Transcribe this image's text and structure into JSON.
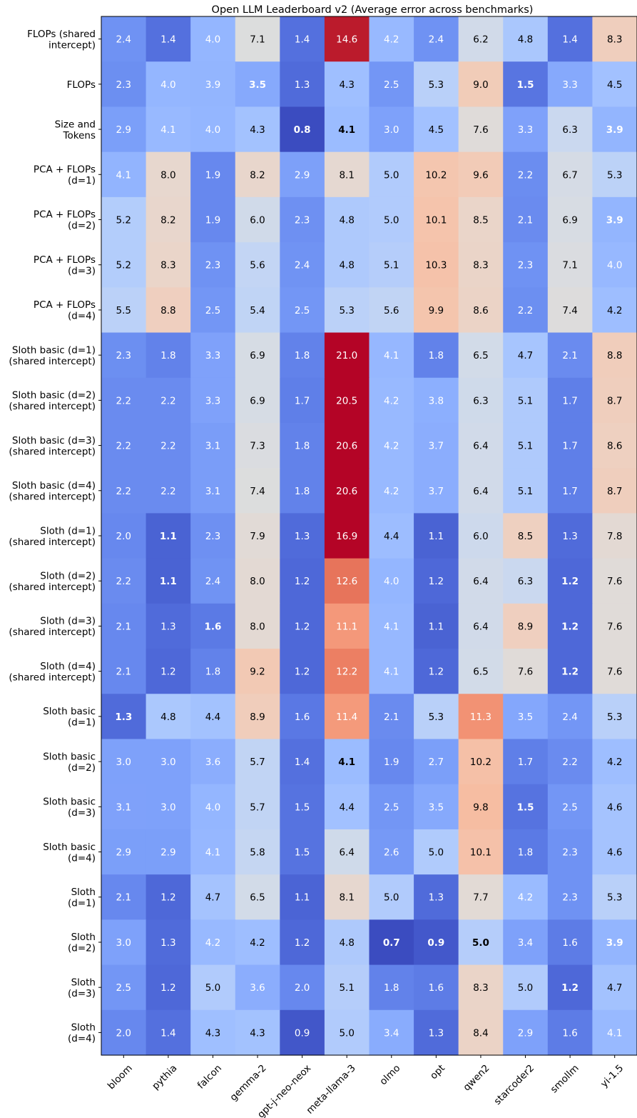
{
  "chart_data": {
    "type": "heatmap",
    "title": "Open LLM Leaderboard v2 (Average error across benchmarks)",
    "colormap": "coolwarm",
    "columns": [
      "bloom",
      "pythia",
      "falcon",
      "gemma-2",
      "gpt-j-neo-neox",
      "meta-llama-3",
      "olmo",
      "opt",
      "qwen2",
      "starcoder2",
      "smollm",
      "yi-1.5"
    ],
    "rows": [
      "FLOPs (shared\nintercept)",
      "FLOPs",
      "Size and\nTokens",
      "PCA + FLOPs\n(d=1)",
      "PCA + FLOPs\n(d=2)",
      "PCA + FLOPs\n(d=3)",
      "PCA + FLOPs\n(d=4)",
      "Sloth basic (d=1)\n(shared intercept)",
      "Sloth basic (d=2)\n(shared intercept)",
      "Sloth basic (d=3)\n(shared intercept)",
      "Sloth basic (d=4)\n(shared intercept)",
      "Sloth (d=1)\n(shared intercept)",
      "Sloth (d=2)\n(shared intercept)",
      "Sloth (d=3)\n(shared intercept)",
      "Sloth (d=4)\n(shared intercept)",
      "Sloth basic\n(d=1)",
      "Sloth basic\n(d=2)",
      "Sloth basic\n(d=3)",
      "Sloth basic\n(d=4)",
      "Sloth\n(d=1)",
      "Sloth\n(d=2)",
      "Sloth\n(d=3)",
      "Sloth\n(d=4)"
    ],
    "values": [
      [
        2.4,
        1.4,
        4.0,
        7.1,
        1.4,
        14.6,
        4.2,
        2.4,
        6.2,
        4.8,
        1.4,
        8.3
      ],
      [
        2.3,
        4.0,
        3.9,
        3.5,
        1.3,
        4.3,
        2.5,
        5.3,
        9.0,
        1.5,
        3.3,
        4.5
      ],
      [
        2.9,
        4.1,
        4.0,
        4.3,
        0.8,
        4.1,
        3.0,
        4.5,
        7.6,
        3.3,
        6.3,
        3.9
      ],
      [
        4.1,
        8.0,
        1.9,
        8.2,
        2.9,
        8.1,
        5.0,
        10.2,
        9.6,
        2.2,
        6.7,
        5.3
      ],
      [
        5.2,
        8.2,
        1.9,
        6.0,
        2.3,
        4.8,
        5.0,
        10.1,
        8.5,
        2.1,
        6.9,
        3.9
      ],
      [
        5.2,
        8.3,
        2.3,
        5.6,
        2.4,
        4.8,
        5.1,
        10.3,
        8.3,
        2.3,
        7.1,
        4.0
      ],
      [
        5.5,
        8.8,
        2.5,
        5.4,
        2.5,
        5.3,
        5.6,
        9.9,
        8.6,
        2.2,
        7.4,
        4.2
      ],
      [
        2.3,
        1.8,
        3.3,
        6.9,
        1.8,
        21.0,
        4.1,
        1.8,
        6.5,
        4.7,
        2.1,
        8.8
      ],
      [
        2.2,
        2.2,
        3.3,
        6.9,
        1.7,
        20.5,
        4.2,
        3.8,
        6.3,
        5.1,
        1.7,
        8.7
      ],
      [
        2.2,
        2.2,
        3.1,
        7.3,
        1.8,
        20.6,
        4.2,
        3.7,
        6.4,
        5.1,
        1.7,
        8.6
      ],
      [
        2.2,
        2.2,
        3.1,
        7.4,
        1.8,
        20.6,
        4.2,
        3.7,
        6.4,
        5.1,
        1.7,
        8.7
      ],
      [
        2.0,
        1.1,
        2.3,
        7.9,
        1.3,
        16.9,
        4.4,
        1.1,
        6.0,
        8.5,
        1.3,
        7.8
      ],
      [
        2.2,
        1.1,
        2.4,
        8.0,
        1.2,
        12.6,
        4.0,
        1.2,
        6.4,
        6.3,
        1.2,
        7.6
      ],
      [
        2.1,
        1.3,
        1.6,
        8.0,
        1.2,
        11.1,
        4.1,
        1.1,
        6.4,
        8.9,
        1.2,
        7.6
      ],
      [
        2.1,
        1.2,
        1.8,
        9.2,
        1.2,
        12.2,
        4.1,
        1.2,
        6.5,
        7.6,
        1.2,
        7.6
      ],
      [
        1.3,
        4.8,
        4.4,
        8.9,
        1.6,
        11.4,
        2.1,
        5.3,
        11.3,
        3.5,
        2.4,
        5.3
      ],
      [
        3.0,
        3.0,
        3.6,
        5.7,
        1.4,
        4.1,
        1.9,
        2.7,
        10.2,
        1.7,
        2.2,
        4.2
      ],
      [
        3.1,
        3.0,
        4.0,
        5.7,
        1.5,
        4.4,
        2.5,
        3.5,
        9.8,
        1.5,
        2.5,
        4.6
      ],
      [
        2.9,
        2.9,
        4.1,
        5.8,
        1.5,
        6.4,
        2.6,
        5.0,
        10.1,
        1.8,
        2.3,
        4.6
      ],
      [
        2.1,
        1.2,
        4.7,
        6.5,
        1.1,
        8.1,
        5.0,
        1.3,
        7.7,
        4.2,
        2.3,
        5.3
      ],
      [
        3.0,
        1.3,
        4.2,
        4.2,
        1.2,
        4.8,
        0.7,
        0.9,
        5.0,
        3.4,
        1.6,
        3.9
      ],
      [
        2.5,
        1.2,
        5.0,
        3.6,
        2.0,
        5.1,
        1.8,
        1.6,
        8.3,
        5.0,
        1.2,
        4.7
      ],
      [
        2.0,
        1.4,
        4.3,
        4.3,
        0.9,
        5.0,
        3.4,
        1.3,
        8.4,
        2.9,
        1.6,
        4.1
      ]
    ],
    "bold_cells": [
      [
        1,
        3
      ],
      [
        1,
        9
      ],
      [
        2,
        4
      ],
      [
        2,
        5
      ],
      [
        2,
        11
      ],
      [
        4,
        11
      ],
      [
        11,
        1
      ],
      [
        12,
        1
      ],
      [
        12,
        10
      ],
      [
        13,
        2
      ],
      [
        13,
        10
      ],
      [
        14,
        10
      ],
      [
        15,
        0
      ],
      [
        16,
        5
      ],
      [
        17,
        9
      ],
      [
        20,
        6
      ],
      [
        20,
        7
      ],
      [
        20,
        8
      ],
      [
        20,
        11
      ],
      [
        21,
        10
      ]
    ],
    "cell_colors": [
      [
        "#6f92f3",
        "#5470de",
        "#94b6ff",
        "#dcdddd",
        "#5470de",
        "#bb1b2c",
        "#98b9ff",
        "#6f92f3",
        "#d1dae9",
        "#aac7fd",
        "#5470de",
        "#efcebd"
      ],
      [
        "#6c8ff1",
        "#94b6ff",
        "#93b5fe",
        "#86a9fc",
        "#506bda",
        "#9fbfff",
        "#7396f5",
        "#b9d0f9",
        "#f1ccb8",
        "#5875e1",
        "#86a9fc",
        "#a2c1ff"
      ],
      [
        "#7b9ff9",
        "#98b9ff",
        "#94b6ff",
        "#a3c2fe",
        "#3b4cc0",
        "#9bbcff",
        "#7ea1fa",
        "#a2c1ff",
        "#dfdbd9",
        "#7fa1fa",
        "#cad8ef",
        "#93b5fe"
      ],
      [
        "#92b4fe",
        "#e7d7ce",
        "#6788ee",
        "#e8d6cc",
        "#7da0f9",
        "#e5d8d1",
        "#b1cbfc",
        "#f4c6af",
        "#f2cbb7",
        "#6b8df0",
        "#d5dbe5",
        "#bcd2f7"
      ],
      [
        "#b3cdfb",
        "#e8d6cc",
        "#6788ee",
        "#d0dae9",
        "#6e90f2",
        "#aec9fc",
        "#b1cbfc",
        "#f5c4ac",
        "#ead5c9",
        "#6a8bef",
        "#d7dce3",
        "#93b5fe"
      ],
      [
        "#b3cdfb",
        "#ead5c9",
        "#6f92f3",
        "#c3d5f4",
        "#7093f3",
        "#aec9fc",
        "#b5cdfa",
        "#f5c2aa",
        "#ead4c8",
        "#6f92f3",
        "#dadce0",
        "#97b8ff"
      ],
      [
        "#bbd1f8",
        "#efcfbf",
        "#7396f5",
        "#c0d4f5",
        "#7396f5",
        "#bbd1f8",
        "#c1d4f4",
        "#f4c5ad",
        "#ebd3c6",
        "#6c8ff1",
        "#dddcdc",
        "#9ebeff"
      ],
      [
        "#6c8ff1",
        "#6282ea",
        "#7fa1fa",
        "#d6dce4",
        "#6282ea",
        "#b40426",
        "#96b7ff",
        "#6282ea",
        "#d2dbe8",
        "#a7c5fe",
        "#6a8bef",
        "#f0cdbb"
      ],
      [
        "#6a8bef",
        "#6a8bef",
        "#7fa1fa",
        "#d6dce4",
        "#5f7fe8",
        "#b40426",
        "#98b9ff",
        "#8caffe",
        "#cfdaea",
        "#afcafc",
        "#5f7fe8",
        "#efcebd"
      ],
      [
        "#6a8bef",
        "#6a8bef",
        "#7a9df8",
        "#dadce0",
        "#6282ea",
        "#b40426",
        "#98b9ff",
        "#8badfd",
        "#d1dae9",
        "#afcafc",
        "#5f7fe8",
        "#eed0c0"
      ],
      [
        "#6a8bef",
        "#6a8bef",
        "#7a9df8",
        "#dcdddd",
        "#6282ea",
        "#b40426",
        "#98b9ff",
        "#8badfd",
        "#d1dae9",
        "#afcafc",
        "#5f7fe8",
        "#efcebd"
      ],
      [
        "#6788ee",
        "#4a63d3",
        "#6e90f2",
        "#e1dad6",
        "#506bda",
        "#b40426",
        "#9dbdff",
        "#4a63d3",
        "#cdd9ec",
        "#eed0c0",
        "#506bda",
        "#e3d9d3"
      ],
      [
        "#6a8bef",
        "#4a63d3",
        "#7093f3",
        "#e3d9d3",
        "#4e68d8",
        "#e7745b",
        "#94b6ff",
        "#4e68d8",
        "#d1dae9",
        "#cad8ef",
        "#4e68d8",
        "#e0dbd8"
      ],
      [
        "#6788ee",
        "#506bda",
        "#5b7ae5",
        "#e3d9d3",
        "#4e68d8",
        "#f4987a",
        "#97b8ff",
        "#4a63d3",
        "#d1dae9",
        "#efcfbf",
        "#4e68d8",
        "#e0dbd8"
      ],
      [
        "#6788ee",
        "#4e68d8",
        "#6282ea",
        "#f2c9b4",
        "#4e68d8",
        "#ec7f63",
        "#97b8ff",
        "#4e68d8",
        "#d2dbe8",
        "#e0dbd8",
        "#4e68d8",
        "#e0dbd8"
      ],
      [
        "#506bda",
        "#abc8fd",
        "#a3c2fe",
        "#f0cdbb",
        "#5a78e4",
        "#f49a7b",
        "#6a8bef",
        "#b9d0f9",
        "#f29274",
        "#84a7fc",
        "#7396f5",
        "#b9d0f9"
      ],
      [
        "#7ea1fa",
        "#7ea1fa",
        "#8badfd",
        "#c1d4f4",
        "#5470de",
        "#9bbcff",
        "#6788ee",
        "#7b9ff9",
        "#f5c0a7",
        "#5f7fe8",
        "#6a8bef",
        "#9ebeff"
      ],
      [
        "#7fa1fa",
        "#7ea1fa",
        "#94b6ff",
        "#c1d4f4",
        "#5673e0",
        "#a2c1ff",
        "#7396f5",
        "#86a9fc",
        "#f6bda2",
        "#5673e0",
        "#7396f5",
        "#a5c3fe"
      ],
      [
        "#7b9ff9",
        "#7b9ff9",
        "#96b7ff",
        "#c5d6f2",
        "#5673e0",
        "#cfdaea",
        "#7699f6",
        "#b0cbfc",
        "#f5c1a9",
        "#5b7ae5",
        "#6f92f3",
        "#a5c3fe"
      ],
      [
        "#6788ee",
        "#4e68d8",
        "#a5c3fe",
        "#d2dbe8",
        "#4b64d5",
        "#e6d7cf",
        "#b1cbfc",
        "#506bda",
        "#e2dad5",
        "#9abbff",
        "#6f92f3",
        "#b9d0f9"
      ],
      [
        "#7ea1fa",
        "#506bda",
        "#98b9ff",
        "#9ebeff",
        "#4e68d8",
        "#aec9fc",
        "#3b4cc0",
        "#4358cb",
        "#b5cdfa",
        "#7ea1fa",
        "#5d7ce6",
        "#93b5fe"
      ],
      [
        "#7396f5",
        "#4e68d8",
        "#b1cbfc",
        "#8badfd",
        "#6788ee",
        "#b5cdfa",
        "#6282ea",
        "#5d7ce6",
        "#ead4c8",
        "#b1cbfc",
        "#4e68d8",
        "#a3c2fe"
      ],
      [
        "#6788ee",
        "#5470de",
        "#9fbfff",
        "#a3c2fe",
        "#4257c9",
        "#b1cbfc",
        "#89acfd",
        "#506bda",
        "#ebd3c6",
        "#7ea1fa",
        "#5d7ce6",
        "#98b9ff"
      ]
    ]
  }
}
